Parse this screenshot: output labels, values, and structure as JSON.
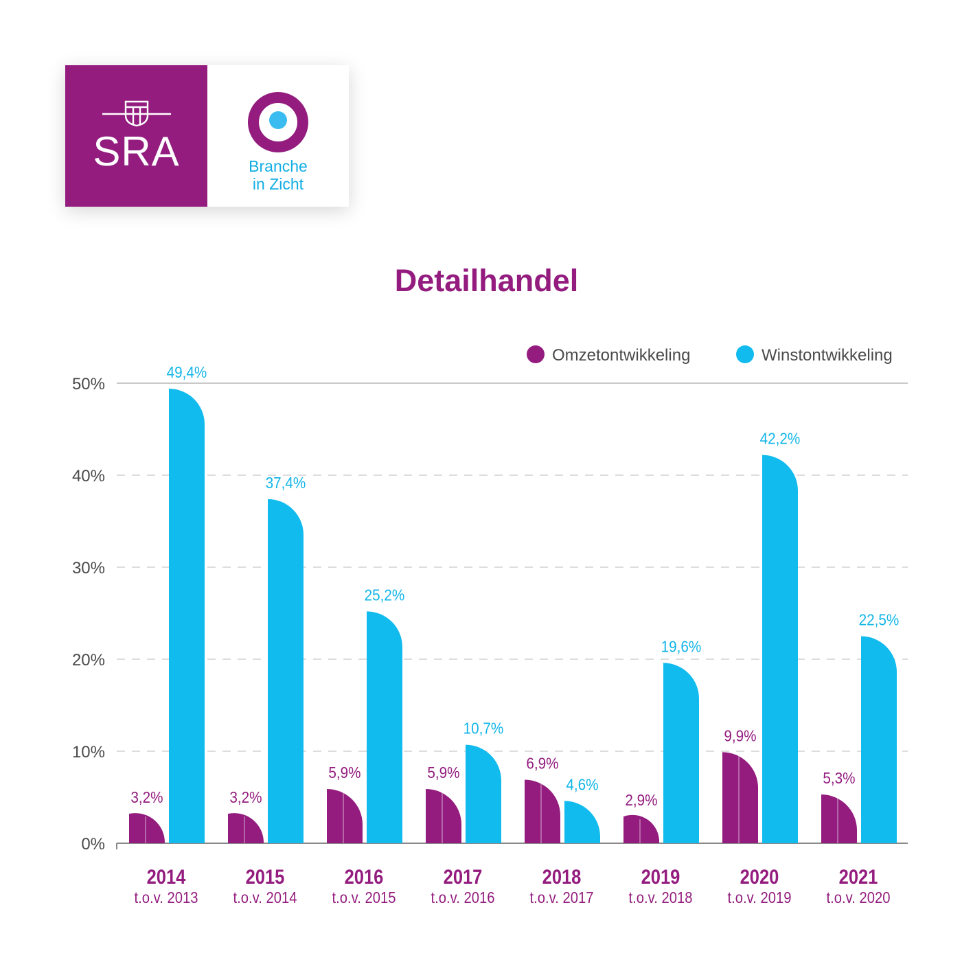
{
  "logo": {
    "sra_text": "SRA",
    "brand_line1": "Branche",
    "brand_line2": "in Zicht",
    "sra_color": "#931c7e",
    "brand_color": "#12aee4"
  },
  "chart_data": {
    "type": "bar",
    "title": "Detailhandel",
    "categories": [
      "2014",
      "2015",
      "2016",
      "2017",
      "2018",
      "2019",
      "2020",
      "2021"
    ],
    "category_sublabels": [
      "t.o.v. 2013",
      "t.o.v. 2014",
      "t.o.v. 2015",
      "t.o.v. 2016",
      "t.o.v. 2017",
      "t.o.v. 2018",
      "t.o.v. 2019",
      "t.o.v. 2020"
    ],
    "series": [
      {
        "name": "Omzetontwikkeling",
        "color": "#931c7e",
        "values": [
          3.2,
          3.2,
          5.9,
          5.9,
          6.9,
          2.9,
          9.9,
          5.3
        ],
        "labels": [
          "3,2%",
          "3,2%",
          "5,9%",
          "5,9%",
          "6,9%",
          "2,9%",
          "9,9%",
          "5,3%"
        ]
      },
      {
        "name": "Winstontwikkeling",
        "color": "#12bbee",
        "values": [
          49.4,
          37.4,
          25.2,
          10.7,
          4.6,
          19.6,
          42.2,
          22.5
        ],
        "labels": [
          "49,4%",
          "37,4%",
          "25,2%",
          "10,7%",
          "4,6%",
          "19,6%",
          "42,2%",
          "22,5%"
        ]
      }
    ],
    "ylim": [
      0,
      50
    ],
    "yticks": [
      "0%",
      "10%",
      "20%",
      "30%",
      "40%",
      "50%"
    ],
    "grid": true,
    "legend_position": "top-right"
  }
}
